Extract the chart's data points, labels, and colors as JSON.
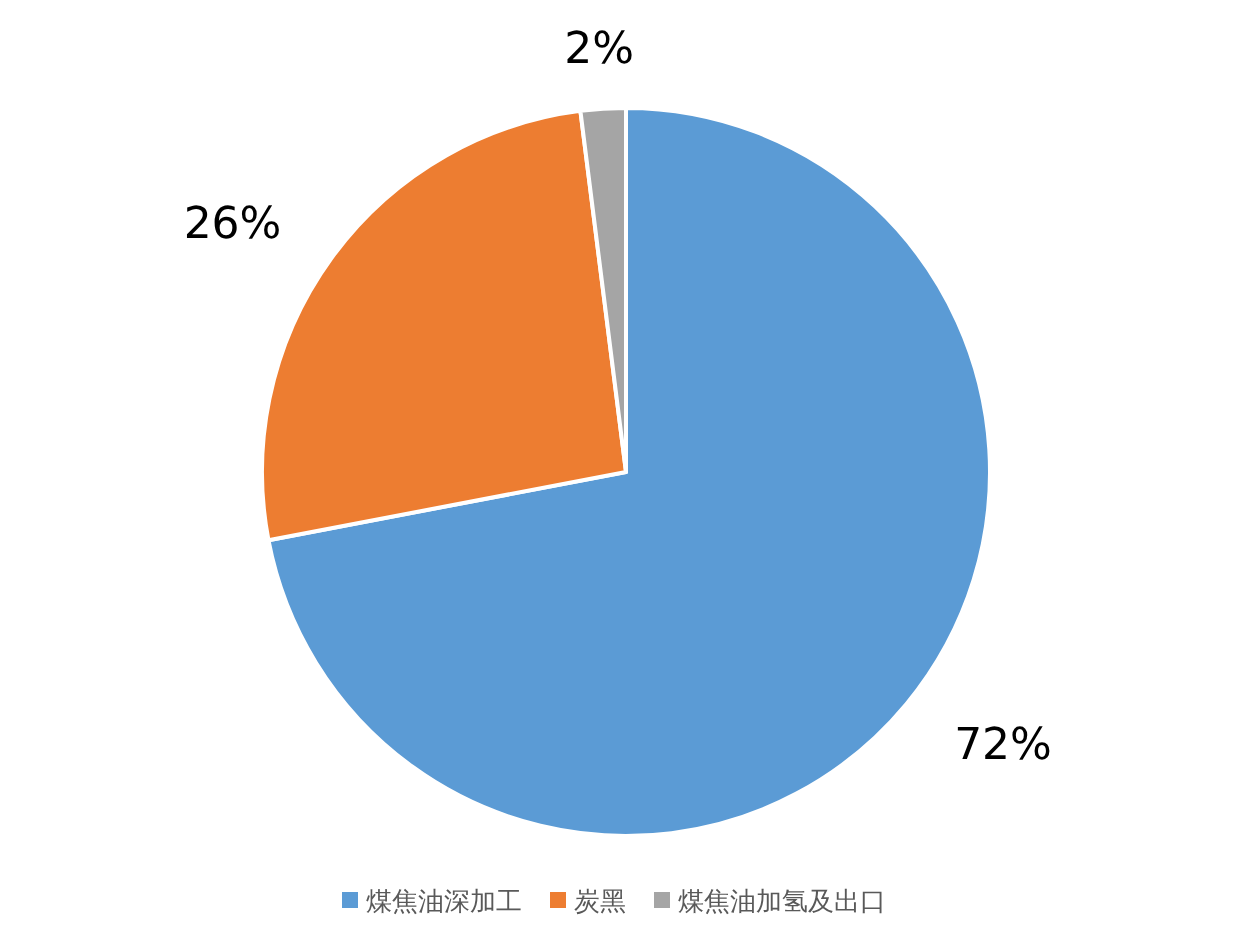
{
  "chart_data": {
    "type": "pie",
    "categories": [
      "煤焦油深加工",
      "炭黑",
      "煤焦油加氢及出口"
    ],
    "values": [
      72,
      26,
      2
    ],
    "colors": [
      "#5b9bd5",
      "#ed7d31",
      "#a5a5a5"
    ],
    "value_labels": [
      "72%",
      "26%",
      "2%"
    ],
    "legend": "bottom"
  }
}
